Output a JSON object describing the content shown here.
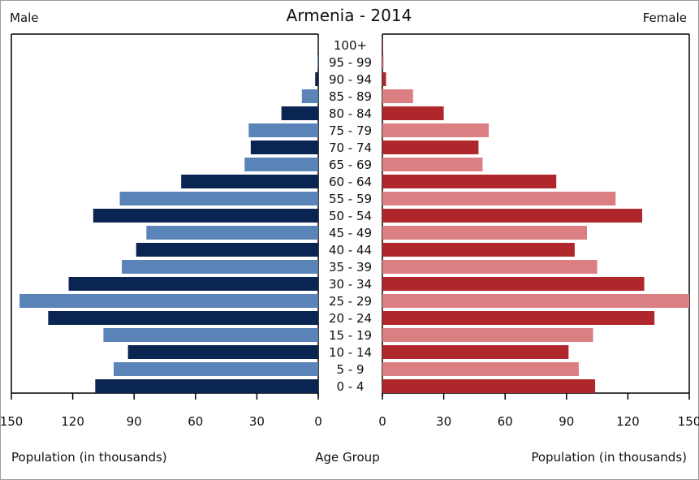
{
  "chart_data": {
    "type": "bar",
    "title": "Armenia - 2014",
    "left_label": "Male",
    "right_label": "Female",
    "xlabel_left": "Population (in thousands)",
    "xlabel_center": "Age Group",
    "xlabel_right": "Population (in thousands)",
    "xlim": [
      0,
      150
    ],
    "ticks": [
      "150",
      "120",
      "90",
      "60",
      "30",
      "0"
    ],
    "ticks_right": [
      "0",
      "30",
      "60",
      "90",
      "120",
      "150"
    ],
    "categories": [
      "100+",
      "95 - 99",
      "90 - 94",
      "85 - 89",
      "80 - 84",
      "75 - 79",
      "70 - 74",
      "65 - 69",
      "60 - 64",
      "55 - 59",
      "50 - 54",
      "45 - 49",
      "40 - 44",
      "35 - 39",
      "30 - 34",
      "25 - 29",
      "20 - 24",
      "15 - 19",
      "10 - 14",
      "5 - 9",
      "0 - 4"
    ],
    "series": [
      {
        "name": "Male",
        "values": [
          0.2,
          0.4,
          1.5,
          8,
          18,
          34,
          33,
          36,
          67,
          97,
          110,
          84,
          89,
          96,
          122,
          146,
          132,
          105,
          93,
          100,
          109
        ]
      },
      {
        "name": "Female",
        "values": [
          0.3,
          0.6,
          1.8,
          15,
          30,
          52,
          47,
          49,
          85,
          114,
          127,
          100,
          94,
          105,
          128,
          150,
          133,
          103,
          91,
          96,
          104
        ]
      }
    ],
    "colors": {
      "male_dark": "#0b2553",
      "male_light": "#5a83b8",
      "female_dark": "#b0272b",
      "female_light": "#dc7f83",
      "axis": "#000000"
    },
    "grid": false
  }
}
